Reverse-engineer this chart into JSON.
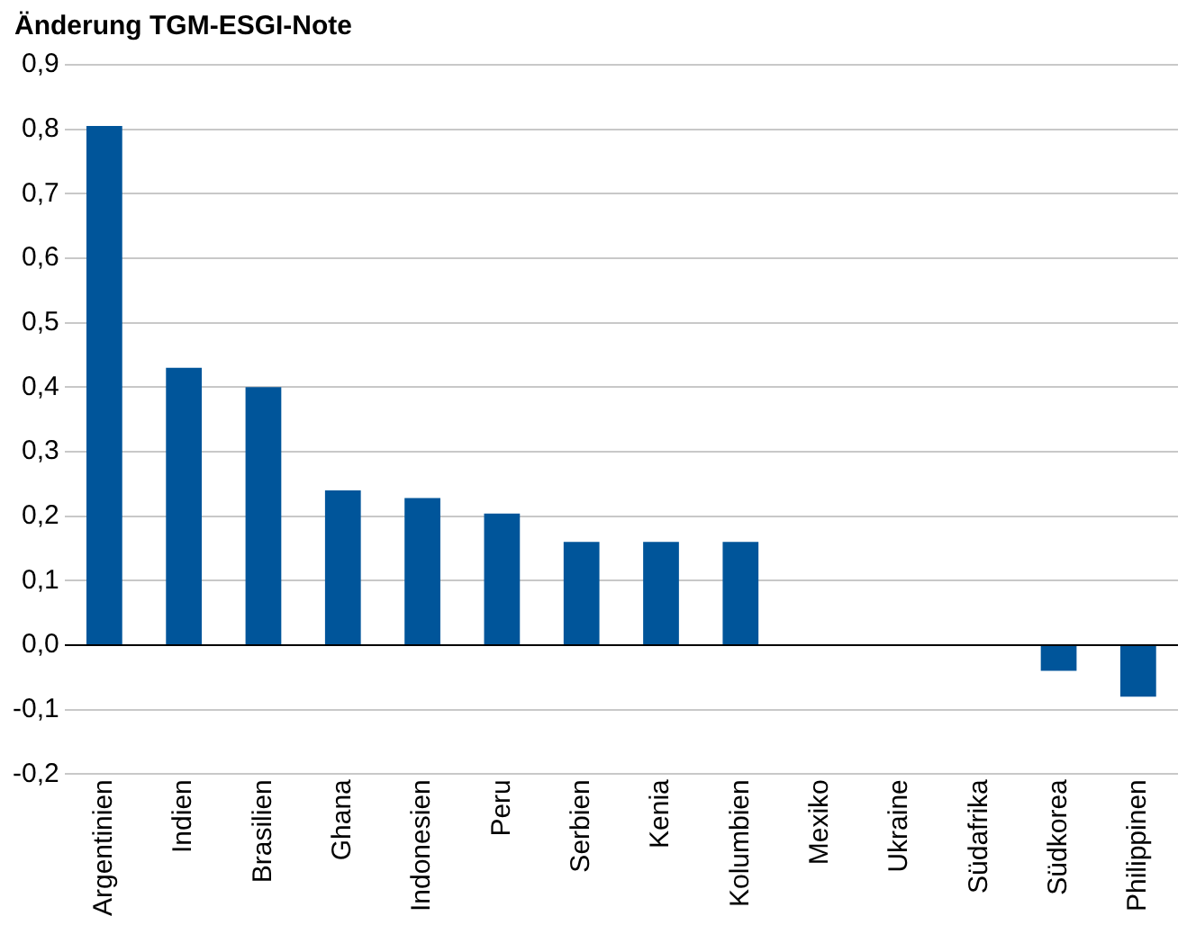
{
  "chart_data": {
    "type": "bar",
    "title": "Änderung TGM-ESGI-Note",
    "categories": [
      "Argentinien",
      "Indien",
      "Brasilien",
      "Ghana",
      "Indonesien",
      "Peru",
      "Serbien",
      "Kenia",
      "Kolumbien",
      "Mexiko",
      "Ukraine",
      "Südafrika",
      "Südkorea",
      "Philippinen"
    ],
    "values": [
      0.805,
      0.43,
      0.4,
      0.24,
      0.228,
      0.204,
      0.16,
      0.16,
      0.16,
      0,
      0,
      0,
      -0.04,
      -0.08
    ],
    "color": "#00559a",
    "ylim": [
      -0.2,
      0.9
    ],
    "yticks": [
      {
        "value": -0.2,
        "label": "-0,2"
      },
      {
        "value": -0.1,
        "label": "-0,1"
      },
      {
        "value": 0,
        "label": "0,0"
      },
      {
        "value": 0.1,
        "label": "0,1"
      },
      {
        "value": 0.2,
        "label": "0,2"
      },
      {
        "value": 0.3,
        "label": "0,3"
      },
      {
        "value": 0.4,
        "label": "0,4"
      },
      {
        "value": 0.5,
        "label": "0,5"
      },
      {
        "value": 0.6,
        "label": "0,6"
      },
      {
        "value": 0.7,
        "label": "0,7"
      },
      {
        "value": 0.8,
        "label": "0,8"
      },
      {
        "value": 0.9,
        "label": "0,9"
      }
    ],
    "grid": "y"
  }
}
